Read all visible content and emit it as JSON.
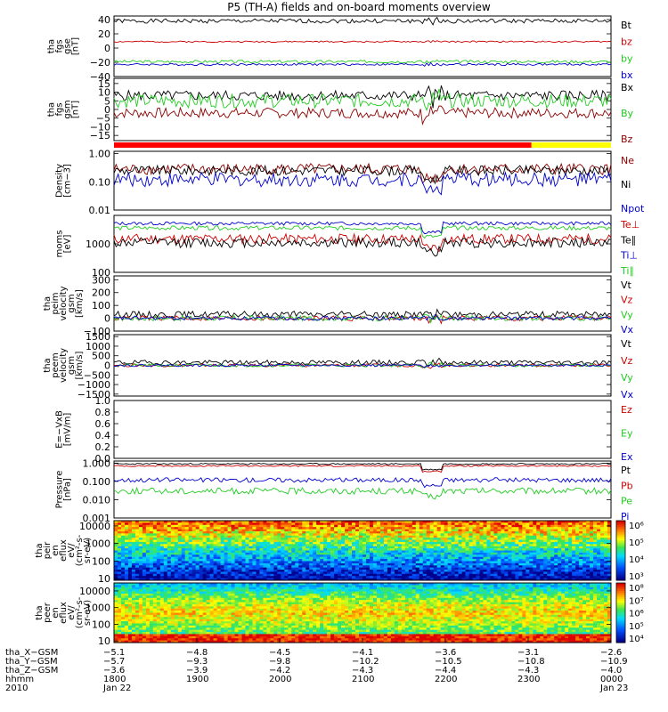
{
  "title": "P5 (TH-A) fields and on-board moments overview",
  "chart_data": [
    {
      "type": "line",
      "ylabel": [
        "tha",
        "fgs",
        "gse",
        "[nT]"
      ],
      "yticks": [
        "40",
        "20",
        "0",
        "−20",
        "−40"
      ],
      "ytick_values": [
        40,
        20,
        0,
        -20,
        -40
      ],
      "ylim": [
        -40,
        45
      ],
      "scale": "linear",
      "series": [
        {
          "name": "Bt",
          "color": "#000000",
          "level": 38,
          "noise": 3,
          "seed": 1
        },
        {
          "name": "bz",
          "color": "#cc0000",
          "level": 9,
          "noise": 1,
          "seed": 2
        },
        {
          "name": "by",
          "color": "#22cc22",
          "level": -19,
          "noise": 2,
          "seed": 3
        },
        {
          "name": "bx",
          "color": "#0000cc",
          "level": -23,
          "noise": 1.5,
          "seed": 4
        }
      ]
    },
    {
      "type": "line",
      "ylabel": [
        "tha",
        "fgs",
        "gsm",
        "[nT]"
      ],
      "yticks": [
        "15",
        "10",
        "5",
        "0",
        "−5",
        "−10",
        "−15"
      ],
      "ytick_values": [
        15,
        10,
        5,
        0,
        -5,
        -10,
        -15
      ],
      "ylim": [
        -18,
        18
      ],
      "scale": "linear",
      "series": [
        {
          "name": "Bx",
          "color": "#000000",
          "level": 8,
          "noise": 3,
          "seed": 5
        },
        {
          "name": "By",
          "color": "#22cc22",
          "level": 5,
          "noise": 4,
          "seed": 6
        },
        {
          "name": "Bz",
          "color": "#8b0000",
          "level": -2,
          "noise": 3,
          "seed": 7
        }
      ]
    },
    {
      "type": "line",
      "ylabel": [
        "Density",
        "[cm−3]"
      ],
      "yticks": [
        "1.00",
        "0.10",
        "0.01"
      ],
      "ytick_values": [
        1.0,
        0.1,
        0.01
      ],
      "ylim": [
        0.01,
        1.2
      ],
      "scale": "log",
      "series": [
        {
          "name": "Ne",
          "color": "#8b0000",
          "level": 0.28,
          "noise": 0.4,
          "seed": 8
        },
        {
          "name": "Ni",
          "color": "#000000",
          "level": 0.25,
          "noise": 0.35,
          "seed": 9
        },
        {
          "name": "Npot",
          "color": "#0000cc",
          "level": 0.12,
          "noise": 0.5,
          "seed": 10
        }
      ]
    },
    {
      "type": "line",
      "ylabel": [
        "moms",
        "[eV]"
      ],
      "yticks": [
        "1000",
        "100"
      ],
      "ytick_values": [
        1000,
        100
      ],
      "ylim": [
        100,
        10000
      ],
      "scale": "log",
      "series": [
        {
          "name": "Te⊥",
          "color": "#cc0000",
          "level": 1500,
          "noise": 0.35,
          "seed": 11
        },
        {
          "name": "Te∥",
          "color": "#000000",
          "level": 1100,
          "noise": 0.35,
          "seed": 12
        },
        {
          "name": "Ti⊥",
          "color": "#0000cc",
          "level": 5200,
          "noise": 0.12,
          "seed": 13
        },
        {
          "name": "Ti∥",
          "color": "#22cc22",
          "level": 3600,
          "noise": 0.15,
          "seed": 14
        }
      ]
    },
    {
      "type": "line",
      "ylabel": [
        "tha",
        "peim",
        "velocity",
        "gsm",
        "[km/s]"
      ],
      "yticks": [
        "300",
        "200",
        "100",
        "0",
        "−100"
      ],
      "ytick_values": [
        300,
        200,
        100,
        0,
        -100
      ],
      "ylim": [
        -100,
        330
      ],
      "scale": "linear",
      "series": [
        {
          "name": "Vt",
          "color": "#000000",
          "level": 30,
          "noise": 25,
          "seed": 15
        },
        {
          "name": "Vz",
          "color": "#cc0000",
          "level": 0,
          "noise": 20,
          "seed": 16
        },
        {
          "name": "Vy",
          "color": "#22cc22",
          "level": 0,
          "noise": 20,
          "seed": 17
        },
        {
          "name": "Vx",
          "color": "#0000cc",
          "level": 0,
          "noise": 15,
          "seed": 18
        }
      ]
    },
    {
      "type": "line",
      "ylabel": [
        "tha",
        "peem",
        "velocity",
        "gsm",
        "[km/s]"
      ],
      "yticks": [
        "1500",
        "1000",
        "500",
        "0",
        "−500",
        "−1000",
        "−1500"
      ],
      "ytick_values": [
        1500,
        1000,
        500,
        0,
        -500,
        -1000,
        -1500
      ],
      "ylim": [
        -1600,
        1600
      ],
      "scale": "linear",
      "series": [
        {
          "name": "Vt",
          "color": "#000000",
          "level": 150,
          "noise": 120,
          "seed": 19
        },
        {
          "name": "Vz",
          "color": "#cc0000",
          "level": 0,
          "noise": 80,
          "seed": 20
        },
        {
          "name": "Vy",
          "color": "#22cc22",
          "level": 0,
          "noise": 80,
          "seed": 21
        },
        {
          "name": "Vx",
          "color": "#0000cc",
          "level": 0,
          "noise": 60,
          "seed": 22
        }
      ]
    },
    {
      "type": "line",
      "ylabel": [
        "E=−VxB",
        "[mV/m]"
      ],
      "yticks": [
        "1.0",
        "0.8",
        "0.6",
        "0.4",
        "0.2",
        "0.0"
      ],
      "ytick_values": [
        1.0,
        0.8,
        0.6,
        0.4,
        0.2,
        0.0
      ],
      "ylim": [
        0,
        1.0
      ],
      "scale": "linear",
      "series": [
        {
          "name": "Ez",
          "color": "#cc0000"
        },
        {
          "name": "Ey",
          "color": "#22cc22"
        },
        {
          "name": "Ex",
          "color": "#0000cc"
        }
      ]
    },
    {
      "type": "line",
      "ylabel": [
        "Pressure",
        "[nPa]"
      ],
      "yticks": [
        "1.000",
        "0.100",
        "0.010",
        "0.001"
      ],
      "ytick_values": [
        1.0,
        0.1,
        0.01,
        0.001
      ],
      "ylim": [
        0.001,
        1.3
      ],
      "scale": "log",
      "series": [
        {
          "name": "Pt",
          "color": "#000000",
          "level": 0.9,
          "noise": 0.08,
          "seed": 23
        },
        {
          "name": "Pb",
          "color": "#cc0000",
          "level": 0.7,
          "noise": 0.08,
          "seed": 24
        },
        {
          "name": "Pe",
          "color": "#22cc22",
          "level": 0.03,
          "noise": 0.35,
          "seed": 25
        },
        {
          "name": "Pi",
          "color": "#0000cc",
          "level": 0.12,
          "noise": 0.25,
          "seed": 26
        }
      ]
    },
    {
      "type": "heatmap",
      "ylabel": [
        "tha",
        "peir",
        "en",
        "eflux",
        "eV/",
        "(cm²-s-",
        "sr-eV)"
      ],
      "yticks": [
        "10000",
        "1000",
        "100",
        "10"
      ],
      "ytick_values": [
        10000,
        1000,
        100,
        10
      ],
      "ylim": [
        8,
        20000
      ],
      "scale": "log",
      "colorbar": {
        "labels": [
          "10⁶",
          "10⁵",
          "10⁴",
          "10³"
        ],
        "values": [
          6,
          5,
          4,
          3
        ]
      }
    },
    {
      "type": "heatmap",
      "ylabel": [
        "tha",
        "peer",
        "en",
        "eflux",
        "eV/",
        "(cm²-s-",
        "sr-eV)"
      ],
      "yticks": [
        "10000",
        "1000",
        "100",
        "10"
      ],
      "ytick_values": [
        10000,
        1000,
        100,
        10
      ],
      "ylim": [
        8,
        30000
      ],
      "scale": "log",
      "colorbar": {
        "labels": [
          "10⁸",
          "10⁷",
          "10⁶",
          "10⁵",
          "10⁴"
        ],
        "values": [
          8,
          7,
          6,
          5,
          4
        ]
      }
    }
  ],
  "xaxis": {
    "row_labels": [
      "tha_X−GSM",
      "tha_Y−GSM",
      "tha_Z−GSM",
      "hhmm",
      "2010"
    ],
    "columns": [
      {
        "x": [
          "−5.1",
          "−5.7",
          "−3.6",
          "1800",
          "Jan 22"
        ]
      },
      {
        "x": [
          "−4.8",
          "−9.3",
          "−3.9",
          "1900",
          ""
        ]
      },
      {
        "x": [
          "−4.5",
          "−9.8",
          "−4.2",
          "2000",
          ""
        ]
      },
      {
        "x": [
          "−4.1",
          "−10.2",
          "−4.3",
          "2100",
          ""
        ]
      },
      {
        "x": [
          "−3.6",
          "−10.5",
          "−4.4",
          "2200",
          ""
        ]
      },
      {
        "x": [
          "−3.1",
          "−10.8",
          "−4.3",
          "2300",
          ""
        ]
      },
      {
        "x": [
          "−2.6",
          "−10.9",
          "−4.0",
          "0000",
          "Jan 23"
        ]
      }
    ]
  },
  "mode_bar": {
    "colors": [
      "#ff0000",
      "#ffff00"
    ],
    "split_fraction": 0.84
  }
}
